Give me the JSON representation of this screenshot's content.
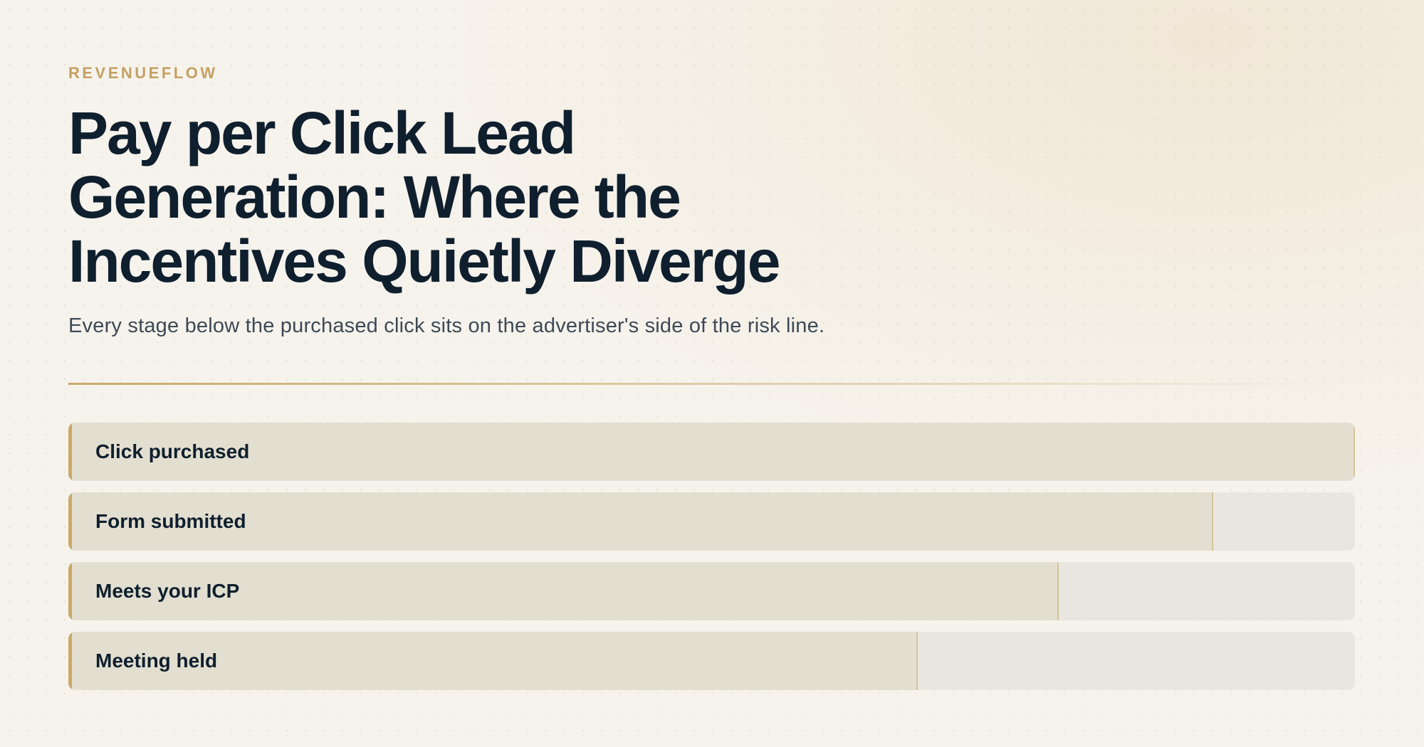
{
  "brand": "REVENUEFLOW",
  "chart_data": {
    "type": "bar",
    "title": "Pay per Click Lead Generation: Where the Incentives Quietly Diverge",
    "subtitle": "Every stage below the purchased click sits on the advertiser's side of the risk line.",
    "categories": [
      "Click purchased",
      "Form submitted",
      "Meets your ICP",
      "Meeting held"
    ],
    "values": [
      100,
      89,
      77,
      66
    ],
    "xlim": [
      0,
      100
    ],
    "color": "#e3dfd0",
    "track_color": "#e8e6de",
    "accent_color": "#c9a96a"
  }
}
